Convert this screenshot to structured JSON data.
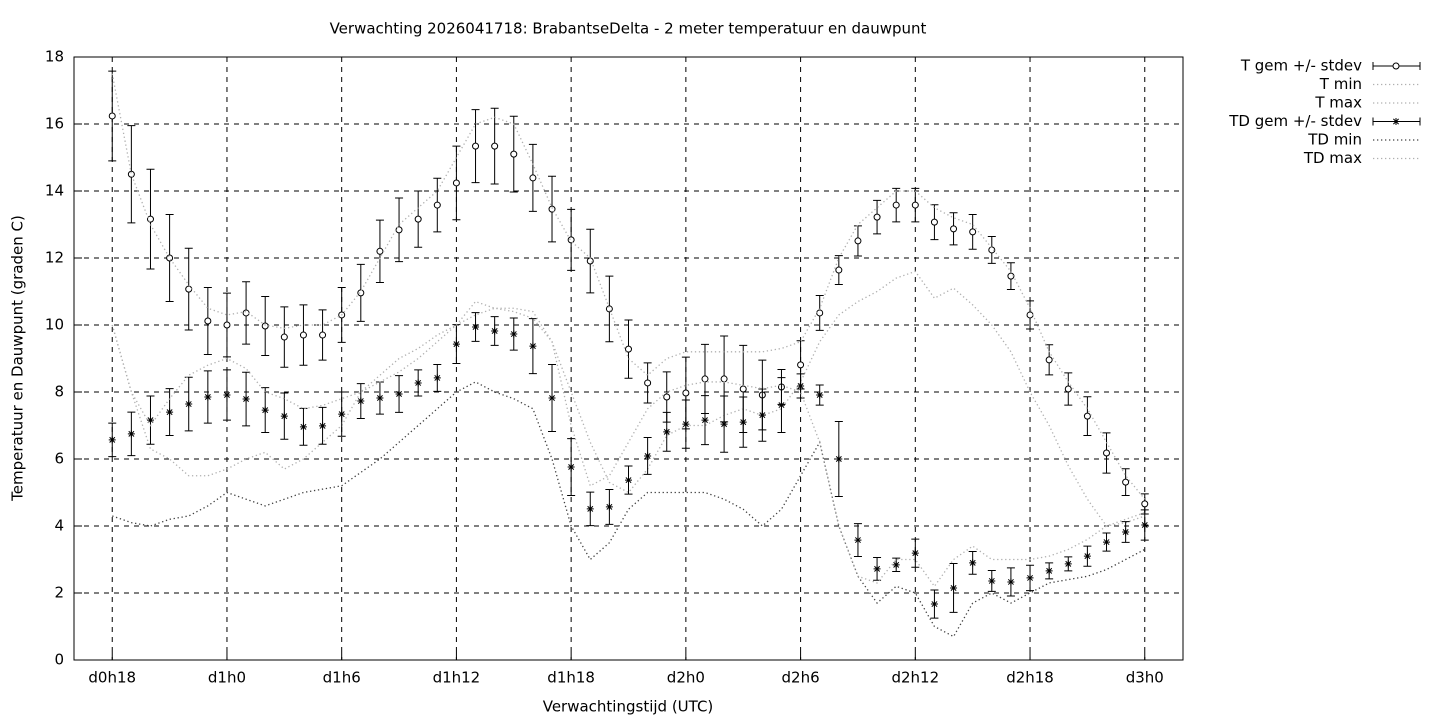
{
  "chart_data": {
    "type": "errorbar-line",
    "title": "Verwachting 2026041718: BrabantseDelta - 2 meter temperatuur en dauwpunt",
    "xlabel": "Verwachtingstijd (UTC)",
    "ylabel": "Temperatuur en Dauwpunt (graden C)",
    "x": [
      0,
      1,
      2,
      3,
      4,
      5,
      6,
      7,
      8,
      9,
      10,
      11,
      12,
      13,
      14,
      15,
      16,
      17,
      18,
      19,
      20,
      21,
      22,
      23,
      24,
      25,
      26,
      27,
      28,
      29,
      30,
      31,
      32,
      33,
      34,
      35,
      36,
      37,
      38,
      39,
      40,
      41,
      42,
      43,
      44,
      45,
      46,
      47,
      48,
      49,
      50,
      51,
      52,
      53,
      54
    ],
    "xlim": [
      -2,
      56
    ],
    "xticks": [
      {
        "value": 0,
        "label": "d0h18"
      },
      {
        "value": 6,
        "label": "d1h0"
      },
      {
        "value": 12,
        "label": "d1h6"
      },
      {
        "value": 18,
        "label": "d1h12"
      },
      {
        "value": 24,
        "label": "d1h18"
      },
      {
        "value": 30,
        "label": "d2h0"
      },
      {
        "value": 36,
        "label": "d2h6"
      },
      {
        "value": 42,
        "label": "d2h12"
      },
      {
        "value": 48,
        "label": "d2h18"
      },
      {
        "value": 54,
        "label": "d3h0"
      }
    ],
    "ylim": [
      0,
      18
    ],
    "yticks": [
      0,
      2,
      4,
      6,
      8,
      10,
      12,
      14,
      16,
      18
    ],
    "grid": true,
    "legend": "outside-top-right",
    "series": [
      {
        "name": "T gem +/- stdev",
        "color": "#000000",
        "style": "errorbars",
        "marker": "circle",
        "values": [
          16.24,
          14.5,
          13.16,
          12.0,
          11.07,
          10.12,
          10.0,
          10.36,
          9.97,
          9.64,
          9.7,
          9.7,
          10.3,
          10.96,
          12.2,
          12.84,
          13.16,
          13.58,
          14.24,
          15.34,
          15.34,
          15.1,
          14.39,
          13.46,
          12.54,
          11.91,
          10.48,
          9.28,
          8.27,
          7.85,
          7.97,
          8.39,
          8.39,
          8.09,
          7.91,
          8.15,
          8.81,
          10.36,
          11.64,
          12.51,
          13.22,
          13.58,
          13.58,
          13.07,
          12.87,
          12.78,
          12.24,
          11.46,
          10.3,
          8.96,
          8.09,
          7.28,
          6.18,
          5.31,
          4.66
        ],
        "errors": [
          1.34,
          1.45,
          1.49,
          1.3,
          1.22,
          1.0,
          0.95,
          0.93,
          0.88,
          0.9,
          0.9,
          0.75,
          0.82,
          0.85,
          0.93,
          0.95,
          0.84,
          0.8,
          1.1,
          1.09,
          1.13,
          1.13,
          1.0,
          0.98,
          0.91,
          0.95,
          0.98,
          0.87,
          0.6,
          0.75,
          1.07,
          1.03,
          1.28,
          1.3,
          1.04,
          0.52,
          0.72,
          0.52,
          0.43,
          0.45,
          0.5,
          0.5,
          0.5,
          0.52,
          0.48,
          0.52,
          0.4,
          0.4,
          0.42,
          0.45,
          0.48,
          0.58,
          0.6,
          0.4,
          0.3
        ]
      },
      {
        "name": "T min",
        "color": "#b0b0b0",
        "style": "dotted",
        "values": [
          10,
          8,
          6.3,
          6,
          5.5,
          5.5,
          5.7,
          6,
          6.2,
          5.7,
          6,
          6.5,
          7,
          8,
          8.5,
          9,
          9.3,
          9.7,
          10,
          10.7,
          10.5,
          10.4,
          10.2,
          9.5,
          8,
          6.5,
          5.3,
          5,
          5.7,
          6.7,
          7,
          7,
          7.3,
          7.5,
          7.3,
          7.5,
          8.3,
          9.5,
          10.3,
          10.7,
          11,
          11.4,
          11.6,
          10.8,
          11.1,
          10.6,
          10,
          9.2,
          8,
          7,
          5.8,
          4.8,
          4,
          4.1,
          4.3
        ]
      },
      {
        "name": "T max",
        "color": "#b0b0b0",
        "style": "dotted",
        "values": [
          17.5,
          14.5,
          13,
          12,
          11.2,
          10.5,
          10.3,
          10.4,
          10,
          9.9,
          10,
          10,
          10.3,
          11,
          12,
          13,
          13.5,
          14,
          15,
          16,
          16.2,
          16,
          14.8,
          13.5,
          12.5,
          12,
          10.5,
          9,
          8.5,
          9,
          9.2,
          9.2,
          9.2,
          9.2,
          9.2,
          9.3,
          9.5,
          10.5,
          12,
          13,
          13.5,
          14,
          14,
          13.5,
          13.2,
          13,
          12.3,
          11.6,
          10.5,
          9.2,
          8.3,
          7.5,
          6.5,
          5.5,
          4.8
        ]
      },
      {
        "name": "TD gem +/- stdev",
        "color": "#000000",
        "style": "errorbars",
        "marker": "star",
        "values": [
          6.57,
          6.75,
          7.16,
          7.4,
          7.64,
          7.85,
          7.91,
          7.79,
          7.46,
          7.28,
          6.96,
          6.99,
          7.34,
          7.73,
          7.82,
          7.94,
          8.27,
          8.42,
          9.43,
          9.94,
          9.82,
          9.73,
          9.37,
          7.82,
          5.76,
          4.51,
          4.57,
          5.37,
          6.09,
          6.81,
          7.04,
          7.16,
          7.04,
          7.1,
          7.31,
          7.61,
          8.18,
          7.91,
          6.0,
          3.58,
          2.72,
          2.84,
          3.19,
          1.67,
          2.15,
          2.9,
          2.36,
          2.33,
          2.45,
          2.66,
          2.87,
          3.1,
          3.52,
          3.82,
          4.03
        ],
        "errors": [
          0.5,
          0.65,
          0.72,
          0.7,
          0.8,
          0.78,
          0.75,
          0.8,
          0.67,
          0.69,
          0.55,
          0.55,
          0.66,
          0.52,
          0.48,
          0.55,
          0.39,
          0.4,
          0.58,
          0.43,
          0.43,
          0.48,
          0.82,
          1.0,
          0.85,
          0.5,
          0.52,
          0.42,
          0.55,
          0.58,
          0.72,
          0.73,
          0.84,
          0.75,
          0.78,
          0.82,
          0.36,
          0.3,
          1.12,
          0.49,
          0.34,
          0.2,
          0.42,
          0.42,
          0.73,
          0.34,
          0.31,
          0.42,
          0.38,
          0.24,
          0.21,
          0.3,
          0.27,
          0.31,
          0.45
        ]
      },
      {
        "name": "TD min",
        "color": "#404040",
        "style": "dotted",
        "values": [
          4.3,
          4.1,
          4.0,
          4.2,
          4.3,
          4.6,
          5.0,
          4.8,
          4.6,
          4.8,
          5.0,
          5.1,
          5.2,
          5.6,
          6.0,
          6.5,
          7.0,
          7.5,
          8.0,
          8.3,
          8.0,
          7.8,
          7.5,
          6.0,
          4.0,
          3.0,
          3.5,
          4.5,
          5.0,
          5.0,
          5.0,
          5.0,
          4.8,
          4.5,
          4.0,
          4.5,
          5.5,
          6.5,
          4.0,
          2.5,
          1.7,
          2.2,
          2.0,
          1.0,
          0.7,
          1.7,
          2.0,
          1.7,
          2.0,
          2.3,
          2.4,
          2.5,
          2.7,
          3.0,
          3.3
        ]
      },
      {
        "name": "TD max",
        "color": "#b0b0b0",
        "style": "dotted",
        "values": [
          10,
          8,
          7,
          7.8,
          8.5,
          8.8,
          9,
          8.7,
          8,
          7.8,
          7.5,
          7.6,
          7.8,
          8.0,
          8.3,
          8.6,
          9.0,
          9.5,
          10.0,
          10.3,
          10.5,
          10.5,
          10.4,
          9.5,
          7.0,
          5.2,
          5.5,
          6.5,
          7.5,
          8.0,
          8.2,
          8.3,
          8.3,
          8.2,
          8.1,
          8.2,
          8.0,
          6.5,
          4.0,
          2.5,
          2.3,
          3.0,
          3.0,
          2.2,
          3.0,
          3.4,
          3.0,
          3.0,
          3.0,
          3.1,
          3.3,
          3.6,
          4.0,
          4.2,
          4.4
        ]
      }
    ]
  }
}
